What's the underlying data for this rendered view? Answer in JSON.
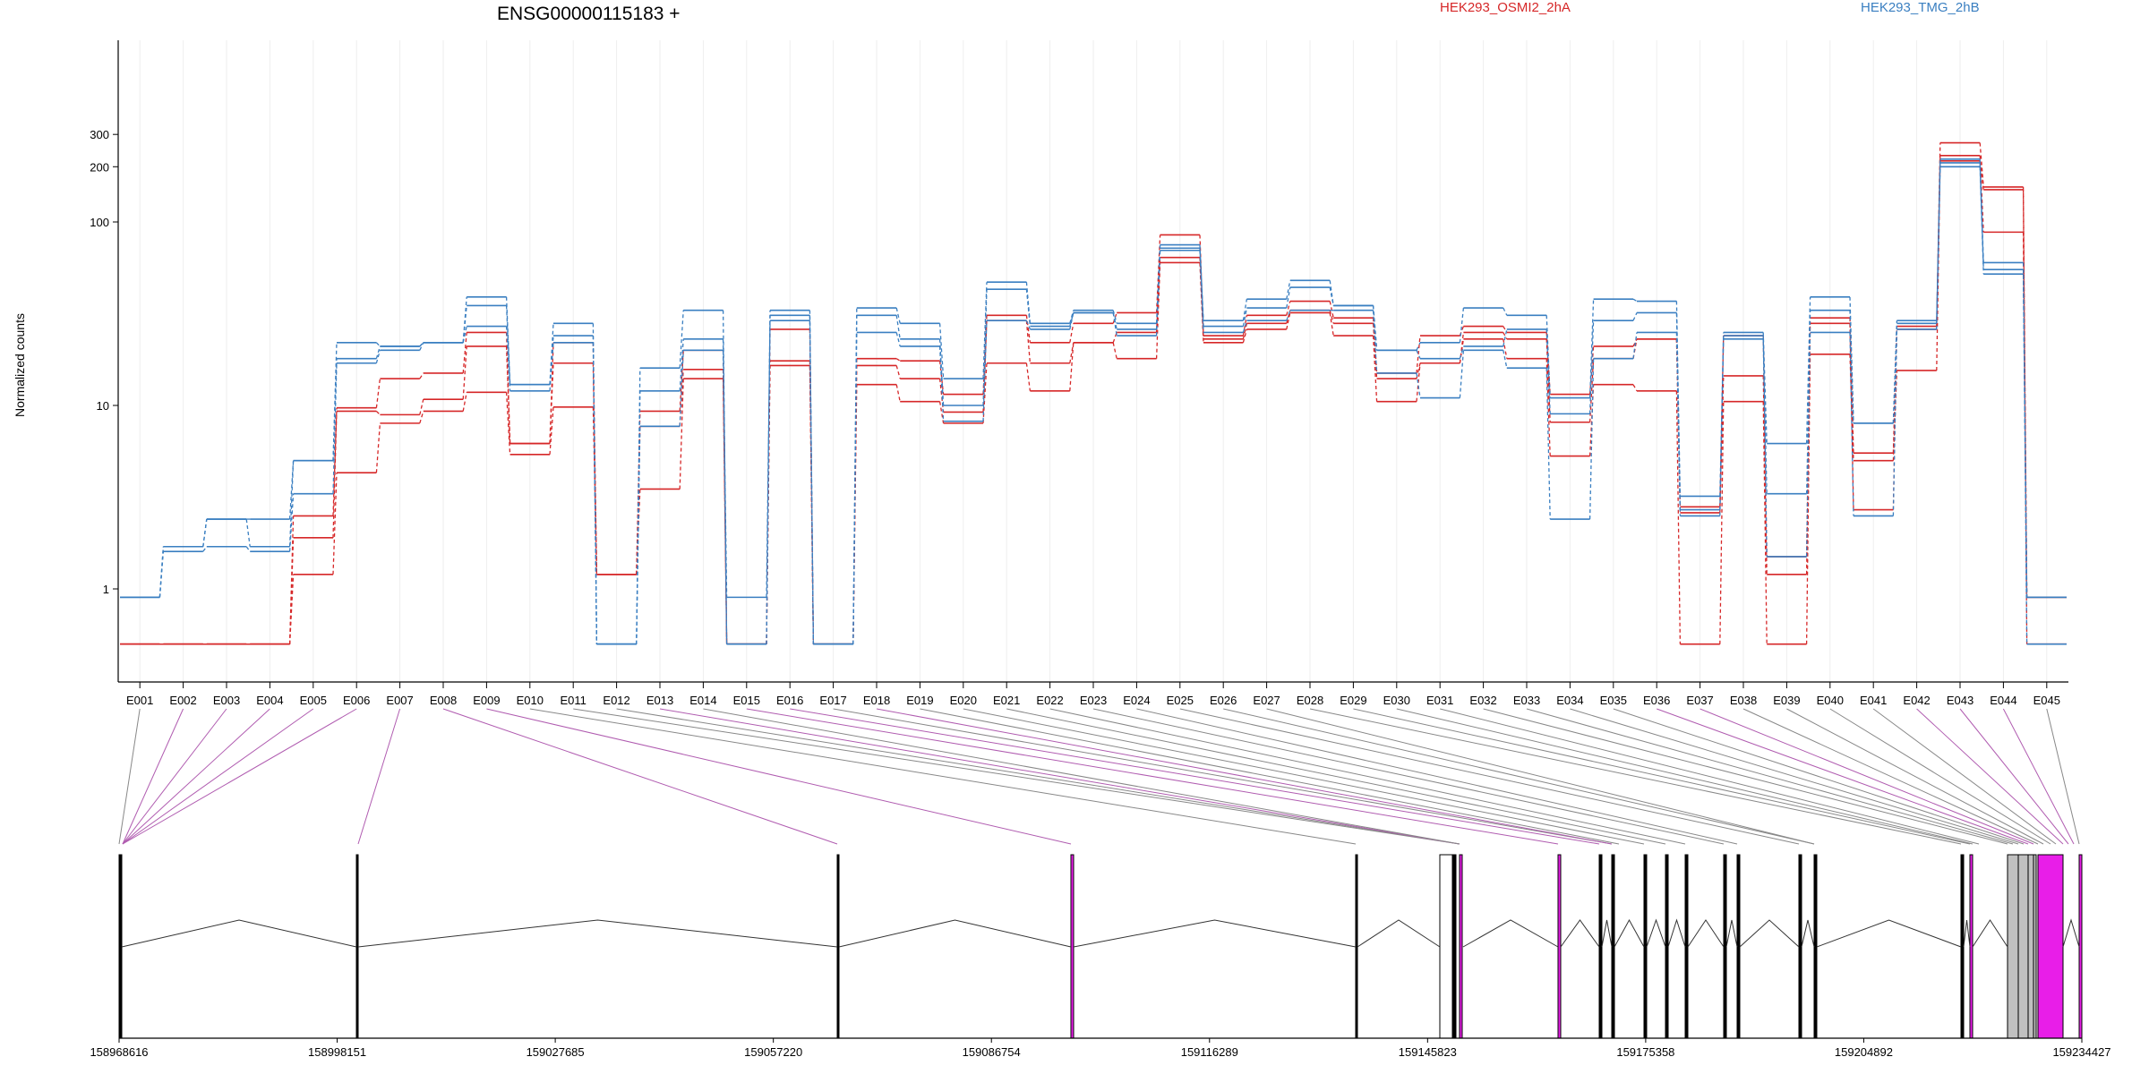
{
  "chart_data": {
    "type": "line",
    "title": "ENSG00000115183 +",
    "ylabel": "Normalized counts",
    "yscale": "log",
    "ylim": [
      0.5,
      400
    ],
    "yticks": [
      {
        "value": 1,
        "label": "1"
      },
      {
        "value": 10,
        "label": "10"
      },
      {
        "value": 100,
        "label": "100"
      },
      {
        "value": 200,
        "label": "200"
      },
      {
        "value": 300,
        "label": "300"
      }
    ],
    "legend": [
      {
        "name": "HEK293_OSMI2_2hA",
        "color": "#d62728"
      },
      {
        "name": "HEK293_TMG_2hB",
        "color": "#3a7fc1"
      }
    ],
    "legend_placement": "top-right",
    "categories": [
      "E001",
      "E002",
      "E003",
      "E004",
      "E005",
      "E006",
      "E007",
      "E008",
      "E009",
      "E010",
      "E011",
      "E012",
      "E013",
      "E014",
      "E015",
      "E016",
      "E017",
      "E018",
      "E019",
      "E020",
      "E021",
      "E022",
      "E023",
      "E024",
      "E025",
      "E026",
      "E027",
      "E028",
      "E029",
      "E030",
      "E031",
      "E032",
      "E033",
      "E034",
      "E035",
      "E036",
      "E037",
      "E038",
      "E039",
      "E040",
      "E041",
      "E042",
      "E043",
      "E044",
      "E045"
    ],
    "series": [
      {
        "group": "HEK293_OSMI2_2hA",
        "color": "#d62728",
        "values": [
          0.5,
          0.5,
          0.5,
          0.5,
          1.2,
          4.3,
          8.0,
          9.3,
          11.8,
          5.4,
          9.8,
          1.2,
          3.5,
          14.0,
          0.5,
          16.5,
          0.5,
          13.0,
          10.5,
          8.0,
          17.0,
          12.0,
          22.0,
          18.0,
          60.0,
          22.0,
          26.0,
          32.0,
          24.0,
          10.5,
          17.0,
          23.0,
          18.0,
          5.3,
          13.0,
          12.0,
          0.5,
          10.5,
          0.5,
          19.0,
          5.0,
          15.5,
          215.0,
          150.0,
          0.5
        ]
      },
      {
        "group": "HEK293_OSMI2_2hA",
        "color": "#d62728",
        "values": [
          0.5,
          0.5,
          0.5,
          0.5,
          1.9,
          9.3,
          8.9,
          10.8,
          21.0,
          6.2,
          17.0,
          1.2,
          7.7,
          15.7,
          0.5,
          17.5,
          0.5,
          16.5,
          14.0,
          9.2,
          29.0,
          17.0,
          22.0,
          25.0,
          64.0,
          23.0,
          28.0,
          33.0,
          28.0,
          14.0,
          17.0,
          25.0,
          23.0,
          8.1,
          18.0,
          23.0,
          2.6,
          14.5,
          1.2,
          28.0,
          2.7,
          26.0,
          230.0,
          88.0,
          0.9
        ]
      },
      {
        "group": "HEK293_OSMI2_2hA",
        "color": "#d62728",
        "values": [
          0.5,
          0.5,
          0.5,
          0.5,
          2.5,
          9.7,
          14.0,
          15.0,
          25.0,
          6.2,
          22.0,
          1.2,
          9.3,
          20.0,
          0.5,
          26.0,
          0.5,
          18.0,
          17.5,
          11.5,
          31.0,
          22.0,
          28.0,
          32.0,
          85.0,
          24.0,
          31.0,
          37.0,
          30.0,
          15.0,
          24.0,
          27.0,
          25.0,
          11.5,
          21.0,
          23.0,
          2.8,
          24.0,
          1.5,
          30.0,
          5.5,
          27.0,
          270.0,
          155.0,
          0.9
        ]
      },
      {
        "group": "HEK293_TMG_2hB",
        "color": "#3a7fc1",
        "values": [
          0.9,
          1.6,
          1.7,
          1.6,
          3.3,
          17.0,
          20.0,
          22.0,
          27.0,
          12.0,
          22.0,
          0.5,
          7.7,
          20.0,
          0.9,
          29.0,
          0.5,
          25.0,
          21.0,
          8.2,
          29.0,
          26.0,
          32.0,
          24.0,
          70.0,
          25.0,
          29.0,
          33.0,
          33.0,
          15.0,
          11.0,
          20.0,
          16.0,
          2.4,
          18.0,
          25.0,
          2.5,
          23.0,
          3.3,
          25.0,
          2.5,
          26.0,
          200.0,
          52.0,
          0.9
        ]
      },
      {
        "group": "HEK293_TMG_2hB",
        "color": "#3a7fc1",
        "values": [
          0.9,
          1.7,
          2.4,
          1.7,
          5.0,
          18.0,
          21.0,
          22.0,
          35.0,
          13.0,
          24.0,
          0.5,
          12.0,
          23.0,
          0.5,
          31.0,
          0.5,
          31.0,
          23.0,
          10.0,
          43.0,
          27.0,
          32.0,
          26.0,
          72.0,
          27.0,
          34.0,
          44.0,
          35.0,
          20.0,
          18.0,
          21.0,
          26.0,
          9.0,
          29.0,
          32.0,
          2.7,
          24.0,
          1.5,
          33.0,
          8.0,
          28.0,
          210.0,
          55.0,
          0.9
        ]
      },
      {
        "group": "HEK293_TMG_2hB",
        "color": "#3a7fc1",
        "values": [
          0.9,
          1.7,
          2.4,
          2.4,
          5.0,
          22.0,
          21.0,
          22.0,
          39.0,
          13.0,
          28.0,
          0.5,
          16.0,
          33.0,
          0.5,
          33.0,
          0.5,
          34.0,
          28.0,
          14.0,
          47.0,
          28.0,
          33.0,
          28.0,
          75.0,
          29.0,
          38.0,
          48.0,
          35.0,
          20.0,
          22.0,
          34.0,
          31.0,
          11.0,
          38.0,
          37.0,
          3.2,
          25.0,
          6.2,
          39.0,
          8.0,
          29.0,
          220.0,
          60.0,
          0.5
        ]
      }
    ],
    "gene_model": {
      "coordinate_ticks": [
        "158968616",
        "158998151",
        "159027685",
        "159057220",
        "159086754",
        "159116289",
        "159145823",
        "159175358",
        "159204892",
        "159234427"
      ],
      "exon_highlight_color": "#e81ee8",
      "exon_fill_color": "#c0c0c0"
    }
  }
}
